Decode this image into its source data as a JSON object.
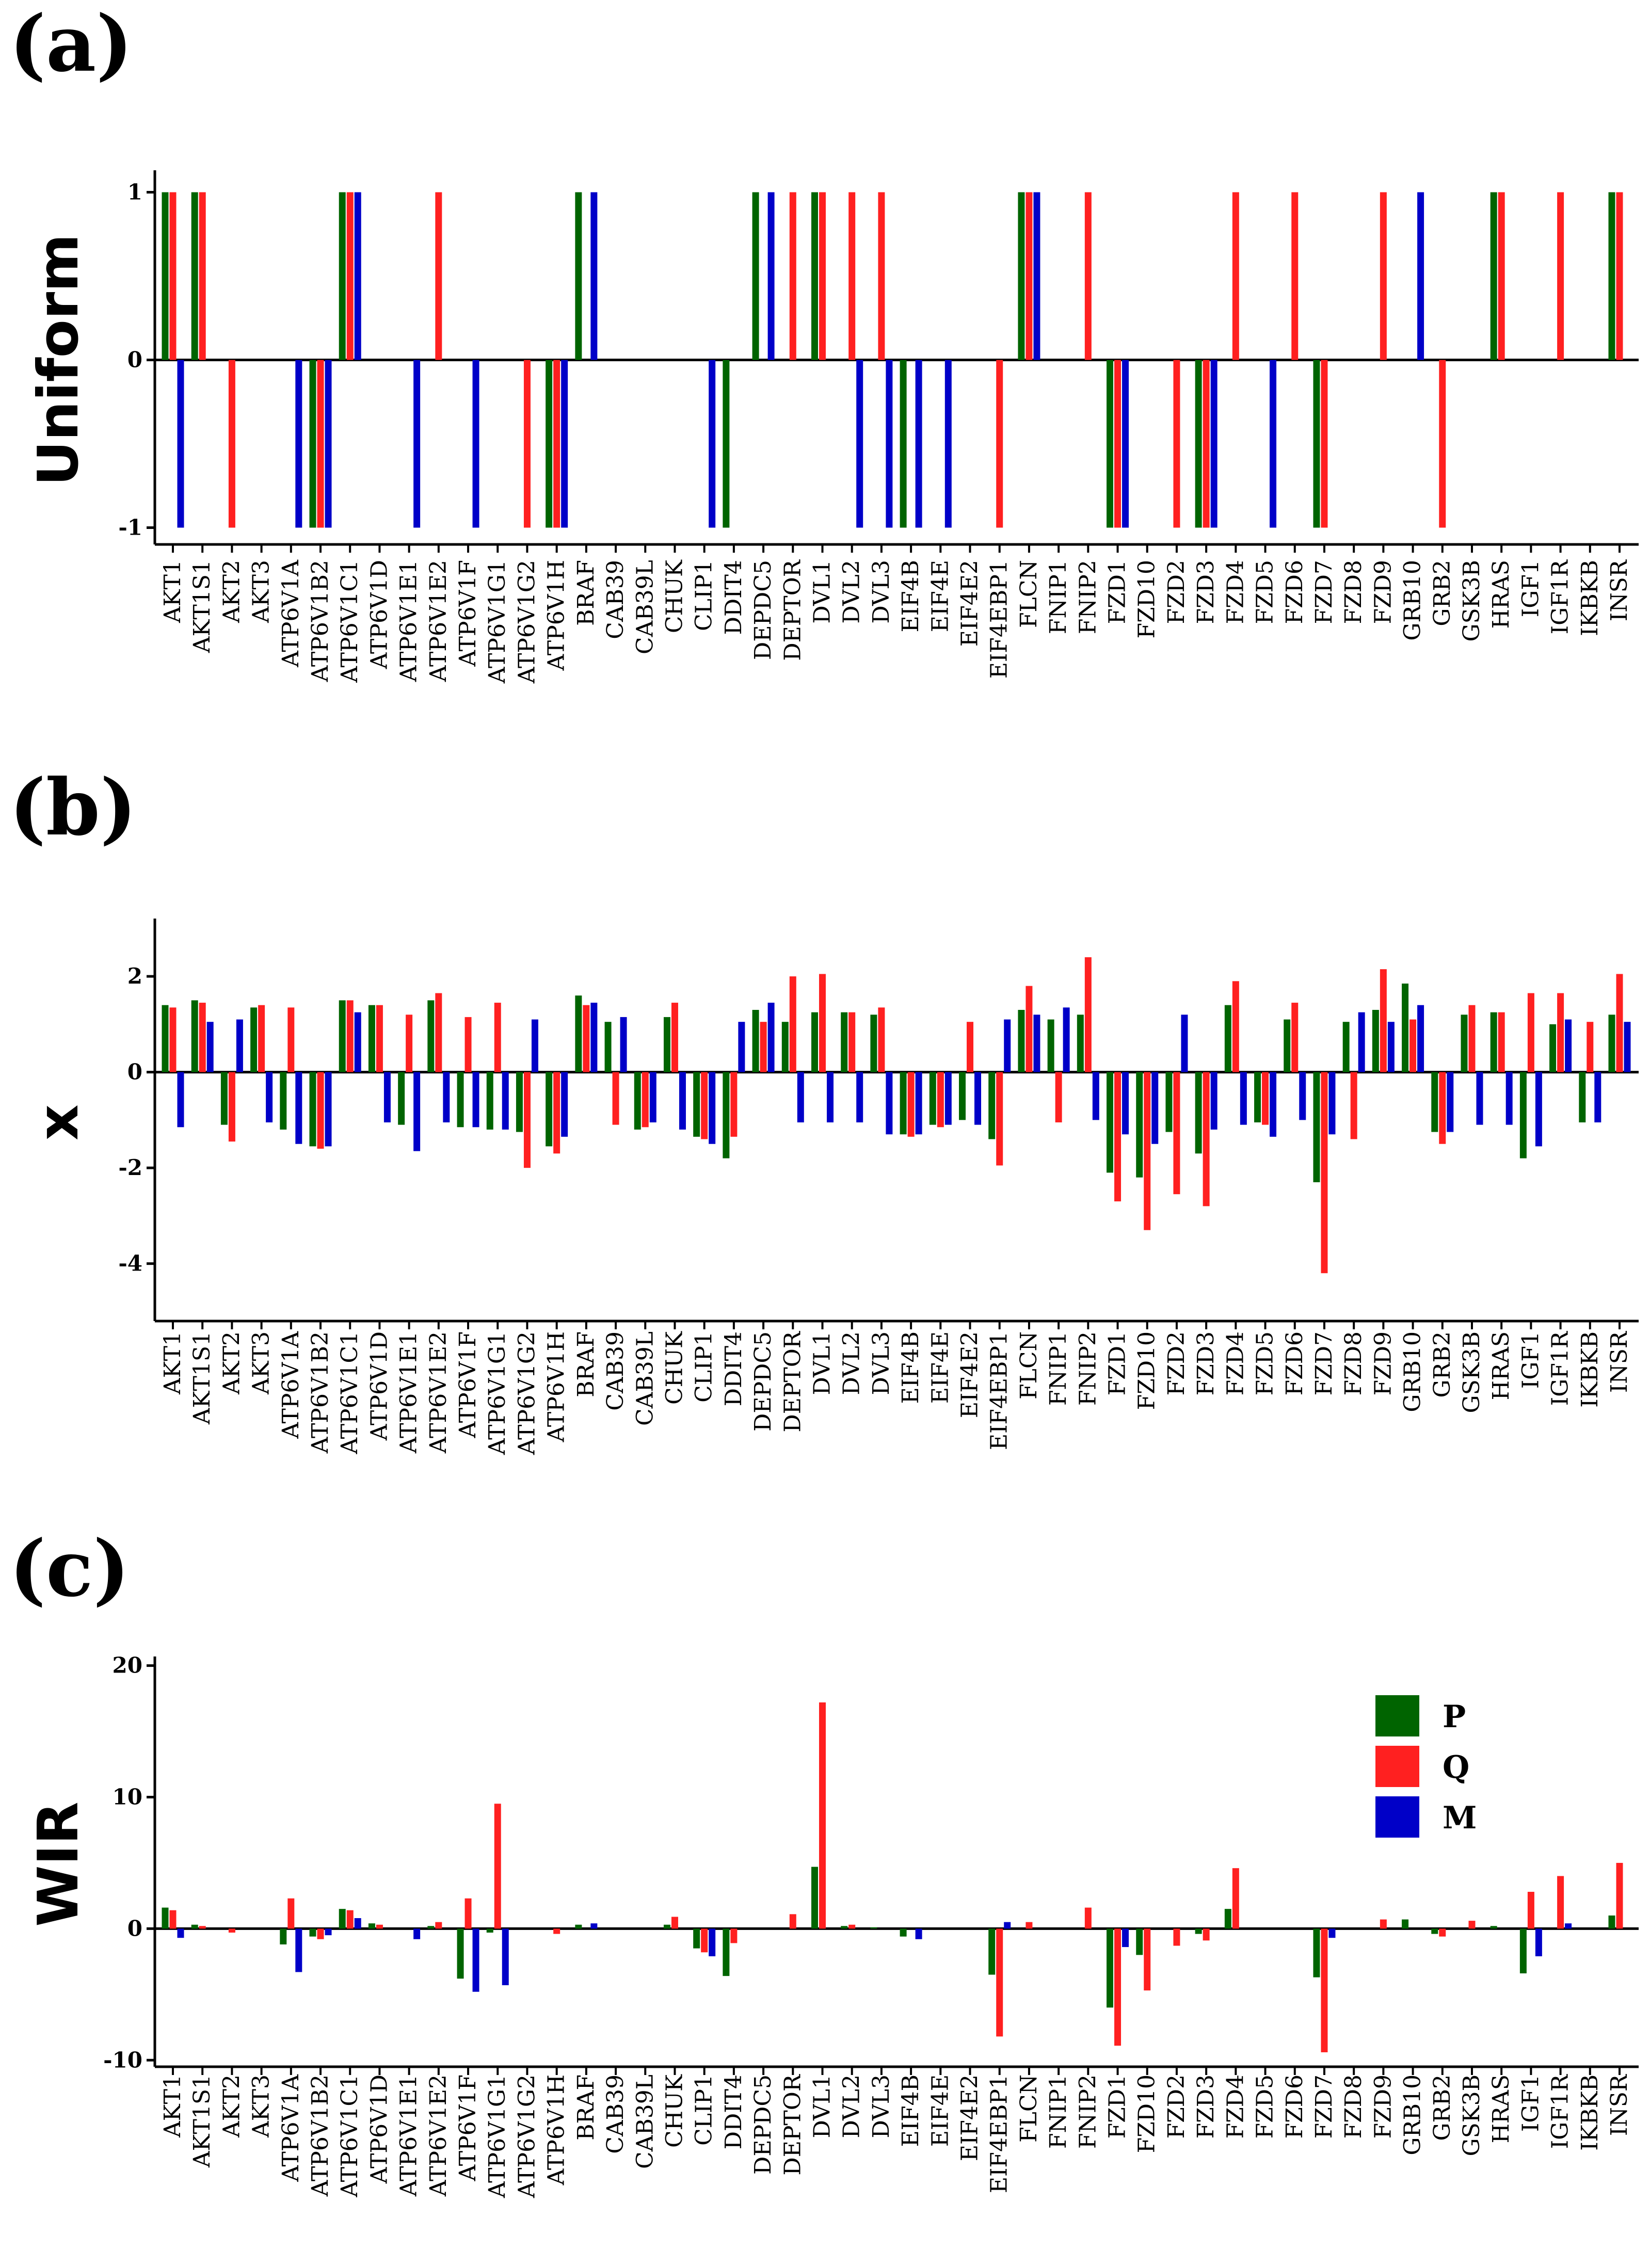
{
  "panels": {
    "a": "(a)",
    "b": "(b)",
    "c": "(c)"
  },
  "legend": [
    {
      "label": "P",
      "color": "#006400"
    },
    {
      "label": "Q",
      "color": "#ff2020"
    },
    {
      "label": "M",
      "color": "#0000c8"
    }
  ],
  "chart_data": [
    {
      "type": "bar",
      "panel": "(a)",
      "ylabel": "Uniform",
      "ylim": [
        -1.1,
        1.1
      ],
      "yticks": [
        -1,
        0,
        1
      ],
      "categories": [
        "AKT1",
        "AKT1S1",
        "AKT2",
        "AKT3",
        "ATP6V1A",
        "ATP6V1B2",
        "ATP6V1C1",
        "ATP6V1D",
        "ATP6V1E1",
        "ATP6V1E2",
        "ATP6V1F",
        "ATP6V1G1",
        "ATP6V1G2",
        "ATP6V1H",
        "BRAF",
        "CAB39",
        "CAB39L",
        "CHUK",
        "CLIP1",
        "DDIT4",
        "DEPDC5",
        "DEPTOR",
        "DVL1",
        "DVL2",
        "DVL3",
        "EIF4B",
        "EIF4E",
        "EIF4E2",
        "EIF4EBP1",
        "FLCN",
        "FNIP1",
        "FNIP2",
        "FZD1",
        "FZD10",
        "FZD2",
        "FZD3",
        "FZD4",
        "FZD5",
        "FZD6",
        "FZD7",
        "FZD8",
        "FZD9",
        "GRB10",
        "GRB2",
        "GSK3B",
        "HRAS",
        "IGF1",
        "IGF1R",
        "IKBKB",
        "INSR"
      ],
      "series": [
        {
          "name": "P",
          "values": [
            1,
            1,
            0,
            0,
            0,
            -1,
            1,
            0,
            0,
            0,
            0,
            0,
            0,
            -1,
            1,
            0,
            0,
            0,
            0,
            -1,
            1,
            0,
            1,
            0,
            0,
            -1,
            0,
            0,
            0,
            1,
            0,
            0,
            -1,
            0,
            0,
            -1,
            0,
            0,
            0,
            -1,
            0,
            0,
            0,
            0,
            0,
            1,
            0,
            0,
            0,
            1
          ]
        },
        {
          "name": "Q",
          "values": [
            1,
            1,
            -1,
            0,
            0,
            -1,
            1,
            0,
            0,
            1,
            0,
            0,
            -1,
            -1,
            0,
            0,
            0,
            0,
            0,
            0,
            0,
            1,
            1,
            1,
            1,
            0,
            0,
            0,
            -1,
            1,
            0,
            1,
            -1,
            0,
            -1,
            -1,
            1,
            0,
            1,
            -1,
            0,
            1,
            0,
            -1,
            0,
            1,
            0,
            1,
            0,
            1
          ]
        },
        {
          "name": "M",
          "values": [
            -1,
            0,
            0,
            0,
            -1,
            -1,
            1,
            0,
            -1,
            0,
            -1,
            0,
            0,
            -1,
            1,
            0,
            0,
            0,
            -1,
            0,
            1,
            0,
            0,
            -1,
            -1,
            -1,
            -1,
            0,
            0,
            1,
            0,
            0,
            -1,
            0,
            0,
            -1,
            0,
            -1,
            0,
            0,
            0,
            0,
            1,
            0,
            0,
            0,
            0,
            0,
            0,
            0
          ]
        }
      ]
    },
    {
      "type": "bar",
      "panel": "(b)",
      "ylabel": "x",
      "ylim": [
        -5.2,
        3.1
      ],
      "yticks": [
        -4,
        -2,
        0,
        2
      ],
      "categories": [
        "AKT1",
        "AKT1S1",
        "AKT2",
        "AKT3",
        "ATP6V1A",
        "ATP6V1B2",
        "ATP6V1C1",
        "ATP6V1D",
        "ATP6V1E1",
        "ATP6V1E2",
        "ATP6V1F",
        "ATP6V1G1",
        "ATP6V1G2",
        "ATP6V1H",
        "BRAF",
        "CAB39",
        "CAB39L",
        "CHUK",
        "CLIP1",
        "DDIT4",
        "DEPDC5",
        "DEPTOR",
        "DVL1",
        "DVL2",
        "DVL3",
        "EIF4B",
        "EIF4E",
        "EIF4E2",
        "EIF4EBP1",
        "FLCN",
        "FNIP1",
        "FNIP2",
        "FZD1",
        "FZD10",
        "FZD2",
        "FZD3",
        "FZD4",
        "FZD5",
        "FZD6",
        "FZD7",
        "FZD8",
        "FZD9",
        "GRB10",
        "GRB2",
        "GSK3B",
        "HRAS",
        "IGF1",
        "IGF1R",
        "IKBKB",
        "INSR"
      ],
      "series": [
        {
          "name": "P",
          "values": [
            1.4,
            1.5,
            -1.1,
            1.35,
            -1.2,
            -1.55,
            1.5,
            1.4,
            -1.1,
            1.5,
            -1.15,
            -1.2,
            -1.25,
            -1.55,
            1.6,
            1.05,
            -1.2,
            1.15,
            -1.35,
            -1.8,
            1.3,
            1.05,
            1.25,
            1.25,
            1.2,
            -1.3,
            -1.1,
            -1.0,
            -1.4,
            1.3,
            1.1,
            1.2,
            -2.1,
            -2.2,
            -1.25,
            -1.7,
            1.4,
            -1.05,
            1.1,
            -2.3,
            1.05,
            1.3,
            1.85,
            -1.25,
            1.2,
            1.25,
            -1.8,
            1.0,
            -1.05,
            1.2
          ]
        },
        {
          "name": "Q",
          "values": [
            1.35,
            1.45,
            -1.45,
            1.4,
            1.35,
            -1.6,
            1.5,
            1.4,
            1.2,
            1.65,
            1.15,
            1.45,
            -2.0,
            -1.7,
            1.4,
            -1.1,
            -1.15,
            1.45,
            -1.4,
            -1.35,
            1.05,
            2.0,
            2.05,
            1.25,
            1.35,
            -1.35,
            -1.15,
            1.05,
            -1.95,
            1.8,
            -1.05,
            2.4,
            -2.7,
            -3.3,
            -2.55,
            -2.8,
            1.9,
            -1.1,
            1.45,
            -4.2,
            -1.4,
            2.15,
            1.1,
            -1.5,
            1.4,
            1.25,
            1.65,
            1.65,
            1.05,
            2.05
          ]
        },
        {
          "name": "M",
          "values": [
            -1.15,
            1.05,
            1.1,
            -1.05,
            -1.5,
            -1.55,
            1.25,
            -1.05,
            -1.65,
            -1.05,
            -1.15,
            -1.2,
            1.1,
            -1.35,
            1.45,
            1.15,
            -1.05,
            -1.2,
            -1.5,
            1.05,
            1.45,
            -1.05,
            -1.05,
            -1.05,
            -1.3,
            -1.3,
            -1.1,
            -1.1,
            1.1,
            1.2,
            1.35,
            -1.0,
            -1.3,
            -1.5,
            1.2,
            -1.2,
            -1.1,
            -1.35,
            -1.0,
            -1.3,
            1.25,
            1.05,
            1.4,
            -1.25,
            -1.1,
            -1.1,
            -1.55,
            1.1,
            -1.05,
            1.05
          ]
        }
      ]
    },
    {
      "type": "bar",
      "panel": "(c)",
      "ylabel": "WIR",
      "ylim": [
        -10.5,
        20.3
      ],
      "yticks": [
        -10,
        0,
        10,
        20
      ],
      "categories": [
        "AKT1",
        "AKT1S1",
        "AKT2",
        "AKT3",
        "ATP6V1A",
        "ATP6V1B2",
        "ATP6V1C1",
        "ATP6V1D",
        "ATP6V1E1",
        "ATP6V1E2",
        "ATP6V1F",
        "ATP6V1G1",
        "ATP6V1G2",
        "ATP6V1H",
        "BRAF",
        "CAB39",
        "CAB39L",
        "CHUK",
        "CLIP1",
        "DDIT4",
        "DEPDC5",
        "DEPTOR",
        "DVL1",
        "DVL2",
        "DVL3",
        "EIF4B",
        "EIF4E",
        "EIF4E2",
        "EIF4EBP1",
        "FLCN",
        "FNIP1",
        "FNIP2",
        "FZD1",
        "FZD10",
        "FZD2",
        "FZD3",
        "FZD4",
        "FZD5",
        "FZD6",
        "FZD7",
        "FZD8",
        "FZD9",
        "GRB10",
        "GRB2",
        "GSK3B",
        "HRAS",
        "IGF1",
        "IGF1R",
        "IKBKB",
        "INSR"
      ],
      "series": [
        {
          "name": "P",
          "values": [
            1.6,
            0.3,
            0.0,
            0.0,
            -1.2,
            -0.6,
            1.5,
            0.4,
            0.0,
            0.2,
            -3.8,
            -0.3,
            0.0,
            0.0,
            0.3,
            0.0,
            0.0,
            0.3,
            -1.5,
            -3.6,
            0.0,
            0.0,
            4.7,
            0.2,
            0.1,
            -0.6,
            0.0,
            0.0,
            -3.5,
            0.0,
            0.0,
            0.0,
            -6.0,
            -2.0,
            0.0,
            -0.4,
            1.5,
            0.0,
            0.0,
            -3.7,
            0.0,
            0.0,
            0.7,
            -0.4,
            0.0,
            0.2,
            -3.4,
            0.0,
            0.0,
            1.0
          ]
        },
        {
          "name": "Q",
          "values": [
            1.4,
            0.2,
            -0.3,
            0.0,
            2.3,
            -0.8,
            1.4,
            0.3,
            0.0,
            0.5,
            2.3,
            9.5,
            0.0,
            -0.4,
            0.0,
            0.0,
            0.0,
            0.9,
            -1.8,
            -1.1,
            0.0,
            1.1,
            17.2,
            0.3,
            0.0,
            0.0,
            0.0,
            0.0,
            -8.2,
            0.5,
            0.0,
            1.6,
            -8.9,
            -4.7,
            -1.3,
            -0.9,
            4.6,
            0.0,
            0.0,
            -9.4,
            0.0,
            0.7,
            0.0,
            -0.6,
            0.6,
            0.0,
            2.8,
            4.0,
            0.0,
            5.0
          ]
        },
        {
          "name": "M",
          "values": [
            -0.7,
            0.0,
            0.0,
            0.0,
            -3.3,
            -0.5,
            0.8,
            0.0,
            -0.8,
            0.0,
            -4.8,
            -4.3,
            0.0,
            0.0,
            0.4,
            0.0,
            0.0,
            0.0,
            -2.1,
            0.0,
            0.0,
            0.0,
            0.0,
            0.0,
            0.0,
            -0.8,
            0.0,
            0.0,
            0.5,
            0.0,
            0.0,
            0.0,
            -1.4,
            0.0,
            0.0,
            0.0,
            0.0,
            0.0,
            0.0,
            -0.7,
            0.0,
            0.0,
            0.0,
            0.0,
            0.0,
            0.0,
            -2.1,
            0.4,
            0.0,
            0.0
          ]
        }
      ]
    }
  ]
}
